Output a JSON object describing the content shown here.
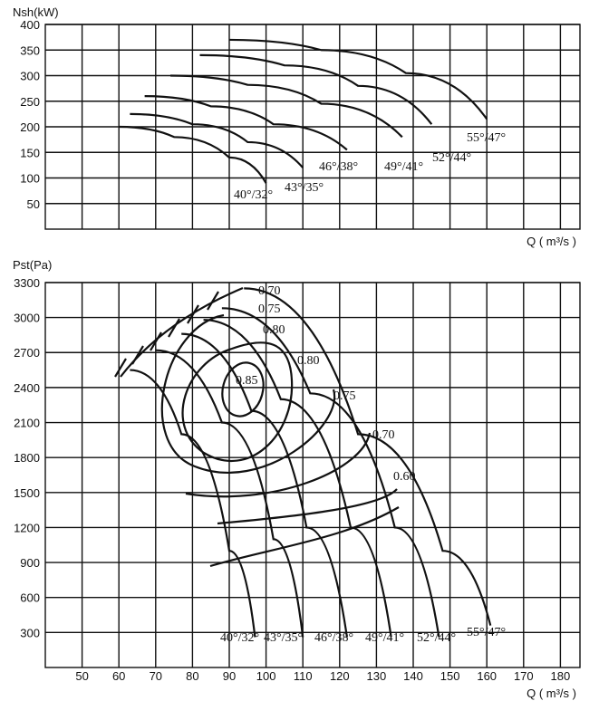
{
  "chart_data": [
    {
      "type": "line",
      "title": "",
      "ylabel": "Nsh(kW)",
      "xlabel": "Q ( m³/s )",
      "xlim": [
        40,
        185
      ],
      "ylim": [
        0,
        400
      ],
      "y_ticks": [
        "50",
        "100",
        "150",
        "200",
        "250",
        "300",
        "350",
        "400"
      ],
      "series": [
        {
          "name": "40°/32°",
          "x": [
            60,
            75,
            90,
            100
          ],
          "y": [
            200,
            180,
            140,
            90
          ]
        },
        {
          "name": "43°/35°",
          "x": [
            63,
            80,
            95,
            110
          ],
          "y": [
            225,
            205,
            170,
            120
          ]
        },
        {
          "name": "46°/38°",
          "x": [
            67,
            85,
            102,
            122
          ],
          "y": [
            260,
            240,
            205,
            155
          ]
        },
        {
          "name": "49°/41°",
          "x": [
            74,
            95,
            115,
            137
          ],
          "y": [
            300,
            282,
            245,
            180
          ]
        },
        {
          "name": "52°/44°",
          "x": [
            82,
            105,
            125,
            145
          ],
          "y": [
            340,
            320,
            280,
            205
          ]
        },
        {
          "name": "55°/47°",
          "x": [
            90,
            115,
            138,
            160
          ],
          "y": [
            370,
            350,
            305,
            215
          ]
        }
      ]
    },
    {
      "type": "line",
      "title": "",
      "ylabel": "Pst(Pa)",
      "xlabel": "Q ( m³/s )",
      "xlim": [
        40,
        185
      ],
      "ylim": [
        0,
        3300
      ],
      "x_ticks": [
        "50",
        "60",
        "70",
        "80",
        "90",
        "100",
        "110",
        "120",
        "130",
        "140",
        "150",
        "160",
        "170",
        "180"
      ],
      "y_ticks": [
        "300",
        "600",
        "900",
        "1200",
        "1500",
        "1800",
        "2100",
        "2400",
        "2700",
        "3000",
        "3300"
      ],
      "series": [
        {
          "name": "40°/32°",
          "x": [
            63,
            77,
            90,
            97
          ],
          "y": [
            2550,
            2000,
            1000,
            260
          ]
        },
        {
          "name": "43°/35°",
          "x": [
            70,
            88,
            102,
            110
          ],
          "y": [
            2720,
            2100,
            1100,
            260
          ]
        },
        {
          "name": "46°/38°",
          "x": [
            77,
            96,
            111,
            122
          ],
          "y": [
            2860,
            2200,
            1200,
            260
          ]
        },
        {
          "name": "49°/41°",
          "x": [
            83,
            104,
            123,
            134
          ],
          "y": [
            2980,
            2300,
            1200,
            260
          ]
        },
        {
          "name": "52°/44°",
          "x": [
            88,
            112,
            135,
            147
          ],
          "y": [
            3080,
            2350,
            1200,
            260
          ]
        },
        {
          "name": "55°/47°",
          "x": [
            94,
            125,
            148,
            161
          ],
          "y": [
            3250,
            2000,
            1000,
            360
          ]
        }
      ],
      "efficiency_labels": [
        "0.85",
        "0.80",
        "0.75",
        "0.70",
        "0.80",
        "0.75",
        "0.70",
        "0.60"
      ]
    }
  ]
}
